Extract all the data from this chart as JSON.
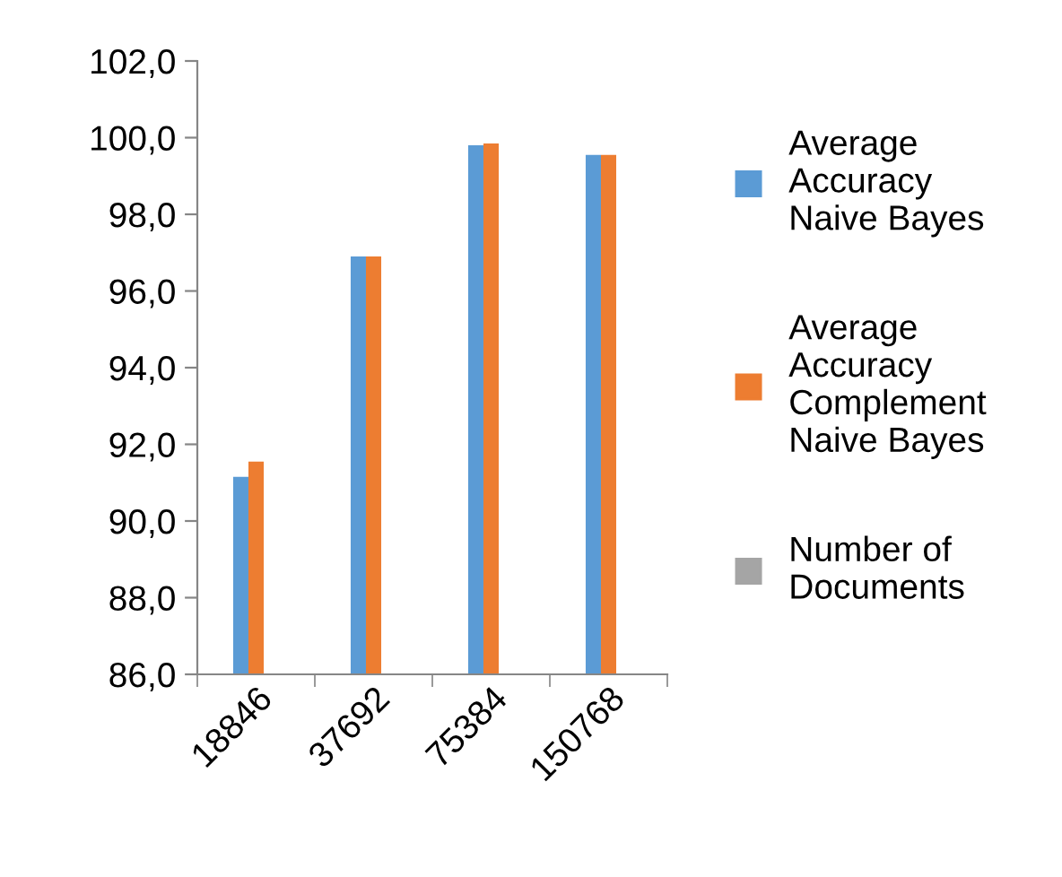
{
  "chart_data": {
    "type": "bar",
    "categories": [
      "18846",
      "37692",
      "75384",
      "150768"
    ],
    "series": [
      {
        "name": "Average Accuracy Naive Bayes",
        "color": "#5b9bd5",
        "values": [
          91.15,
          96.9,
          99.8,
          99.55
        ]
      },
      {
        "name": "Average Accuracy Complement Naive Bayes",
        "color": "#ed7d31",
        "values": [
          91.55,
          96.9,
          99.85,
          99.55
        ]
      },
      {
        "name": "Number of Documents",
        "color": "#a5a5a5",
        "values": [
          null,
          null,
          null,
          null
        ]
      }
    ],
    "ylim": [
      86,
      102
    ],
    "yticks": [
      {
        "value": 86,
        "label": "86,0"
      },
      {
        "value": 88,
        "label": "88,0"
      },
      {
        "value": 90,
        "label": "90,0"
      },
      {
        "value": 92,
        "label": "92,0"
      },
      {
        "value": 94,
        "label": "94,0"
      },
      {
        "value": 96,
        "label": "96,0"
      },
      {
        "value": 98,
        "label": "98,0"
      },
      {
        "value": 100,
        "label": "100,0"
      },
      {
        "value": 102,
        "label": "102,0"
      }
    ],
    "grid": false,
    "legend": "right"
  }
}
